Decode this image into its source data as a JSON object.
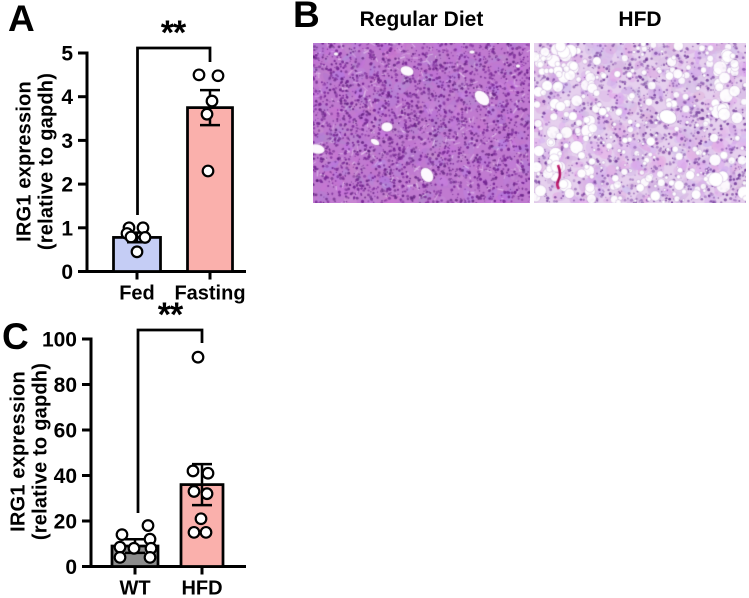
{
  "page": {
    "background": "#ffffff"
  },
  "panels": {
    "a": {
      "label": "A",
      "significance": "**",
      "ylabel_line1": "IRG1 expression",
      "ylabel_line2": "(relative to gapdh)",
      "x_labels": [
        "Fed",
        "Fasting"
      ]
    },
    "b": {
      "label": "B",
      "left_title": "Regular Diet",
      "right_title": "HFD"
    },
    "c": {
      "label": "C",
      "significance": "**",
      "ylabel_line1": "IRG1 expression",
      "ylabel_line2": "(relative to gapdh)",
      "x_labels": [
        "WT",
        "HFD"
      ]
    }
  },
  "chart_data": [
    {
      "type": "bar",
      "panel": "A",
      "title": "",
      "categories": [
        "Fed",
        "Fasting"
      ],
      "values": [
        0.78,
        3.75
      ],
      "errors": [
        0.11,
        0.4
      ],
      "points": [
        [
          1.0,
          1.0,
          0.87,
          0.79,
          0.78,
          0.45
        ],
        [
          4.5,
          4.48,
          3.9,
          3.6,
          2.3
        ]
      ],
      "point_jitter": [
        [
          -8,
          6,
          -10,
          -6,
          8,
          0
        ],
        [
          -11,
          8,
          2,
          -3,
          -2
        ]
      ],
      "xlabel": "",
      "ylabel": "IRG1 expression (relative to gapdh)",
      "ylim": [
        0,
        5
      ],
      "yticks": [
        0,
        1,
        2,
        3,
        4,
        5
      ],
      "grid": false,
      "legend": false,
      "significance": "**",
      "significance_between": [
        "Fed",
        "Fasting"
      ],
      "bar_colors": [
        "#c5cdf5",
        "#fab0ac"
      ],
      "bar_edge_color": "#000000",
      "point_fill": "#ffffff"
    },
    {
      "type": "bar",
      "panel": "C",
      "title": "",
      "categories": [
        "WT",
        "HFD"
      ],
      "values": [
        9,
        36
      ],
      "errors": [
        3,
        9
      ],
      "points": [
        [
          18,
          14,
          12,
          8.5,
          8,
          8,
          4,
          4
        ],
        [
          92,
          42,
          41,
          33,
          32,
          21,
          15,
          15
        ]
      ],
      "point_jitter": [
        [
          13,
          -13,
          15,
          -15,
          -1,
          16,
          -15,
          15
        ],
        [
          -4,
          -9,
          6,
          -8,
          5,
          -1,
          -8,
          4
        ]
      ],
      "xlabel": "",
      "ylabel": "IRG1 expression (relative to gapdh)",
      "ylim": [
        0,
        100
      ],
      "yticks": [
        0,
        20,
        40,
        60,
        80,
        100
      ],
      "grid": false,
      "legend": false,
      "significance": "**",
      "significance_between": [
        "WT",
        "HFD"
      ],
      "bar_colors": [
        "#8c8c8c",
        "#fab0ac"
      ],
      "bar_edge_color": "#000000",
      "point_fill": "#ffffff"
    }
  ],
  "colors": {
    "fed_bar": "#c5cdf5",
    "fasting_bar": "#fab0ac",
    "wt_bar": "#8c8c8c",
    "hfd_bar": "#fab0ac",
    "axis": "#000000",
    "regular_diet_tissue": "#c07ad0",
    "hfd_tissue": "#e6d0ee",
    "capillary_red": "#c22070"
  }
}
